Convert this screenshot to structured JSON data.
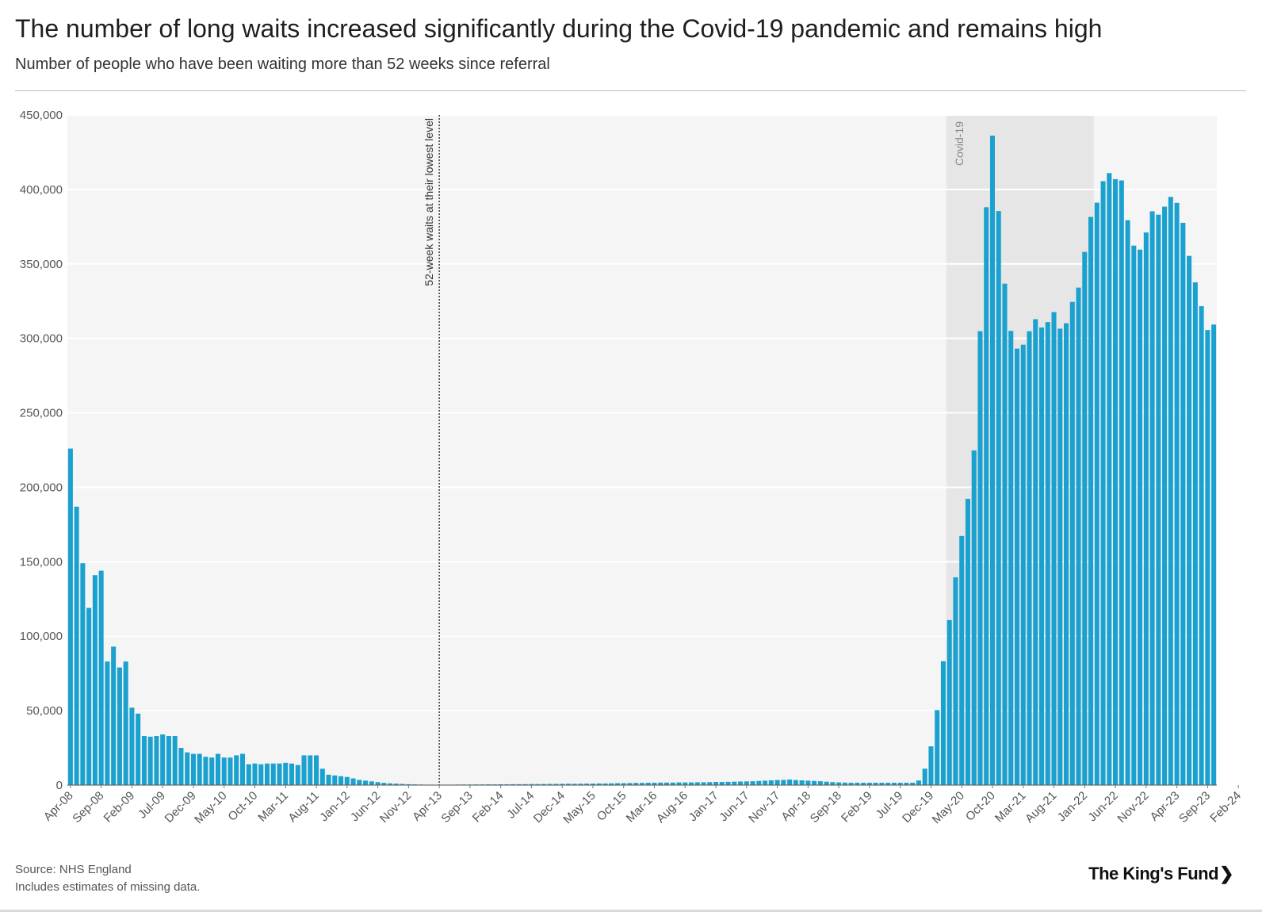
{
  "header": {
    "title": "The number of long waits increased significantly during the Covid-19 pandemic and remains high",
    "subtitle": "Number of people who have been waiting more than 52 weeks since referral"
  },
  "footer": {
    "source": "Source: NHS England",
    "note": "Includes estimates of missing data.",
    "logo": "The King's Fund"
  },
  "colors": {
    "bar": "#1ba1cf",
    "plot_bg": "#f5f5f5",
    "covid_shade": "#e6e6e6",
    "grid": "#ffffff"
  },
  "chart_data": {
    "type": "bar",
    "title": "The number of long waits increased significantly during the Covid-19 pandemic and remains high",
    "subtitle": "Number of people who have been waiting more than 52 weeks since referral",
    "xlabel": "",
    "ylabel": "",
    "ylim": [
      0,
      450000
    ],
    "yticks": [
      0,
      50000,
      100000,
      150000,
      200000,
      250000,
      300000,
      350000,
      400000,
      450000
    ],
    "ytick_labels": [
      "0",
      "50,000",
      "100,000",
      "150,000",
      "200,000",
      "250,000",
      "300,000",
      "350,000",
      "400,000",
      "450,000"
    ],
    "grid": true,
    "start_month": "Apr-08",
    "xtick_labels": [
      "Apr-08",
      "Sep-08",
      "Feb-09",
      "Jul-09",
      "Dec-09",
      "May-10",
      "Oct-10",
      "Mar-11",
      "Aug-11",
      "Jan-12",
      "Jun-12",
      "Nov-12",
      "Apr-13",
      "Sep-13",
      "Feb-14",
      "Jul-14",
      "Dec-14",
      "May-15",
      "Oct-15",
      "Mar-16",
      "Aug-16",
      "Jan-17",
      "Jun-17",
      "Nov-17",
      "Apr-18",
      "Sep-18",
      "Feb-19",
      "Jul-19",
      "Dec-19",
      "May-20",
      "Oct-20",
      "Mar-21",
      "Aug-21",
      "Jan-22",
      "Jun-22",
      "Nov-22",
      "Apr-23",
      "Sep-23",
      "Feb-24"
    ],
    "annotations": [
      {
        "type": "vline",
        "at": "Apr-13",
        "label": "52-week waits at their lowest level",
        "style": "dotted"
      },
      {
        "type": "shaded",
        "from": "Mar-20",
        "to": "Feb-22",
        "label": "Covid-19"
      }
    ],
    "series": [
      {
        "values": [
          226000,
          187000,
          149000,
          119000,
          141000,
          144000,
          83000,
          93000,
          79000,
          83000,
          52000,
          48000,
          33000,
          32500,
          33000,
          34000,
          33000,
          33000,
          25000,
          22000,
          21000,
          21000,
          19000,
          18500,
          21000,
          18500,
          18500,
          20000,
          21000,
          14000,
          14500,
          14000,
          14500,
          14500,
          14500,
          15000,
          14500,
          13500,
          20000,
          20000,
          20000,
          11000,
          7000,
          6500,
          6000,
          5500,
          4500,
          3500,
          3000,
          2500,
          2000,
          1500,
          1200,
          1000,
          800,
          600,
          500,
          400,
          300,
          300,
          300,
          300,
          300,
          400,
          400,
          400,
          450,
          450,
          500,
          500,
          550,
          550,
          600,
          600,
          650,
          700,
          700,
          750,
          800,
          800,
          850,
          900,
          900,
          950,
          1000,
          1000,
          1100,
          1100,
          1200,
          1300,
          1300,
          1400,
          1500,
          1500,
          1600,
          1600,
          1700,
          1700,
          1700,
          1800,
          1800,
          1800,
          1900,
          1900,
          2000,
          2100,
          2100,
          2200,
          2300,
          2400,
          2500,
          2600,
          2800,
          3000,
          3200,
          3400,
          3500,
          3700,
          3400,
          3200,
          3000,
          2800,
          2600,
          2300,
          2000,
          1800,
          1700,
          1600,
          1600,
          1600,
          1600,
          1600,
          1600,
          1600,
          1600,
          1600,
          1600,
          1613,
          3097,
          11042,
          26029,
          50387,
          83203,
          110826,
          139545,
          167299,
          192222,
          224722,
          304803,
          388064,
          436127,
          385490,
          336733,
          305050,
          293102,
          295715,
          304785,
          312865,
          307309,
          310936,
          317609,
          306525,
          310143,
          324484,
          334096,
          358044,
          381563,
          391131,
          405578,
          410983,
          406917,
          406080,
          379360,
          362300,
          359598,
          371111,
          385316,
          383083,
          388453,
          395000,
          391000,
          377600,
          355400,
          337600,
          321600,
          305600,
          309300
        ]
      }
    ]
  }
}
